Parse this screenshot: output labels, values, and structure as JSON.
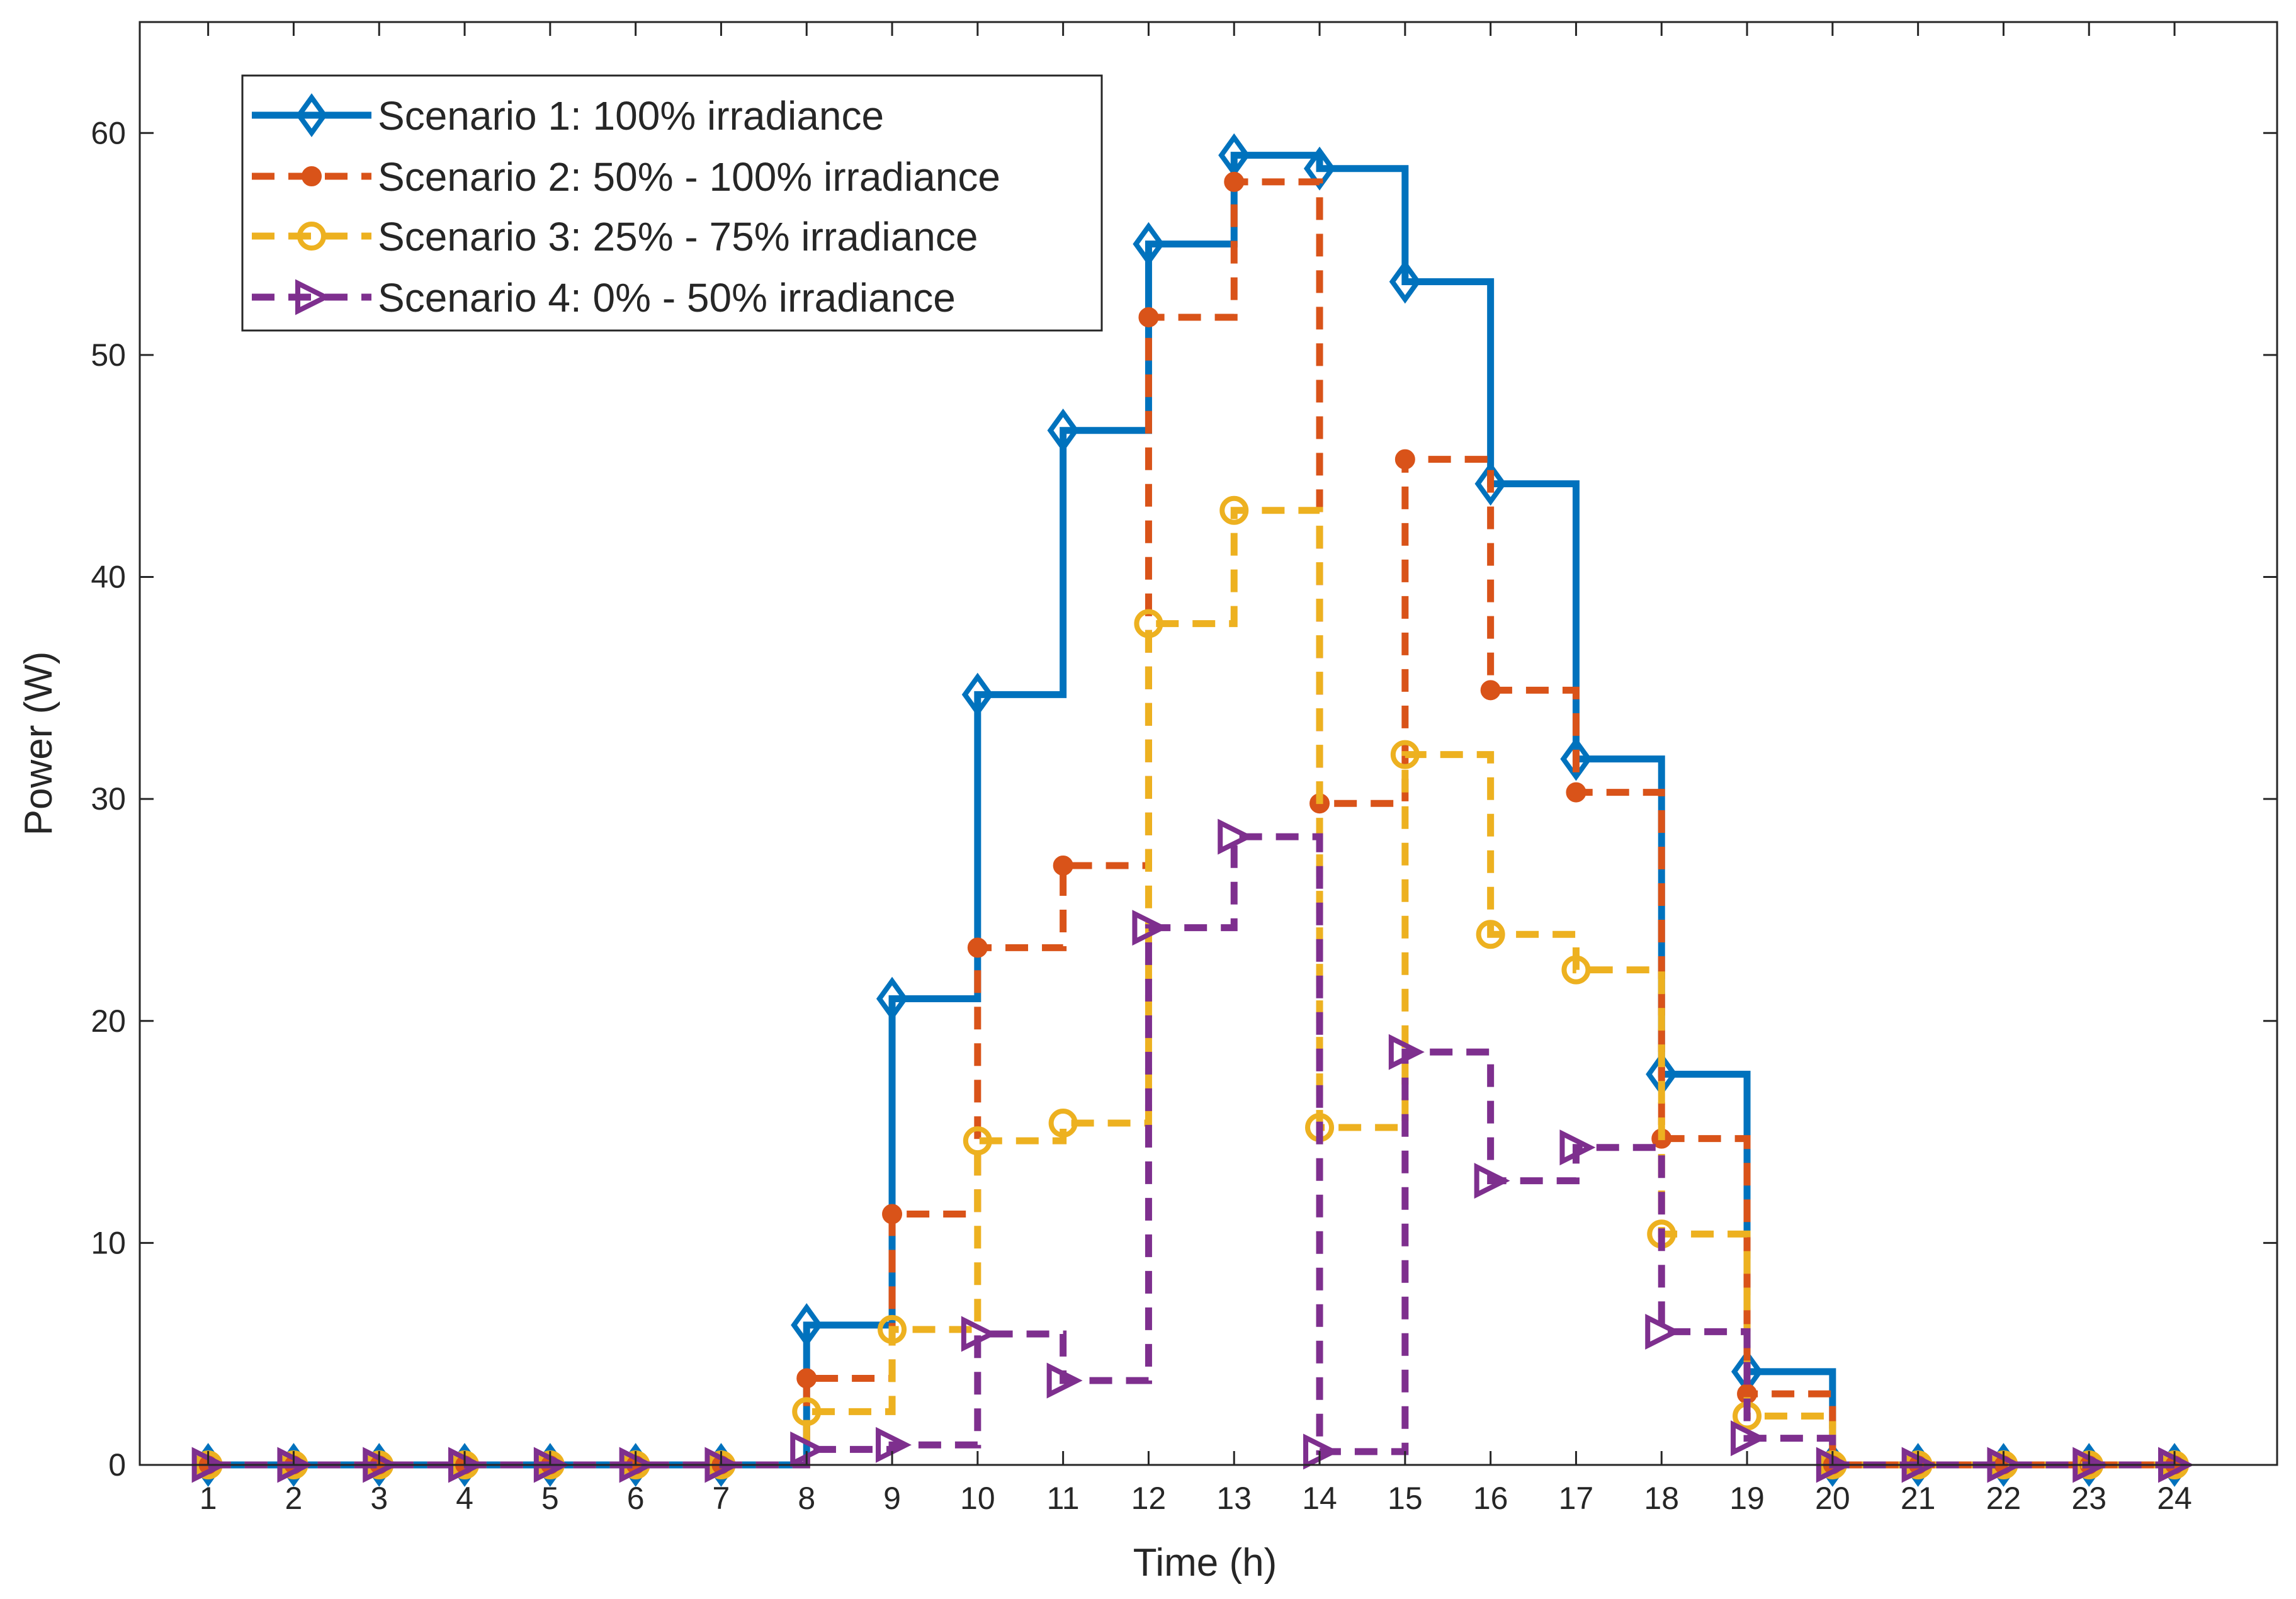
{
  "chart_data": {
    "type": "line",
    "style": "stairs",
    "title": "",
    "xlabel": "Time (h)",
    "ylabel": "Power (W)",
    "xlim": [
      0.2,
      25.2
    ],
    "ylim": [
      0,
      65
    ],
    "xticks": [
      1,
      2,
      3,
      4,
      5,
      6,
      7,
      8,
      9,
      10,
      11,
      12,
      13,
      14,
      15,
      16,
      17,
      18,
      19,
      20,
      21,
      22,
      23,
      24
    ],
    "yticks": [
      0,
      10,
      20,
      30,
      40,
      50,
      60
    ],
    "grid": false,
    "legend_position": "top-left",
    "x": [
      1,
      2,
      3,
      4,
      5,
      6,
      7,
      8,
      9,
      10,
      11,
      12,
      13,
      14,
      15,
      16,
      17,
      18,
      19,
      20,
      21,
      22,
      23,
      24
    ],
    "series": [
      {
        "name": "Scenario 1: 100% irradiance",
        "color": "#0072BD",
        "line_style": "solid",
        "marker": "diamond",
        "values": [
          0,
          0,
          0,
          0,
          0,
          0,
          0,
          6.3,
          21.0,
          34.7,
          46.6,
          55.0,
          59.0,
          58.4,
          53.3,
          44.2,
          31.8,
          17.6,
          4.2,
          0,
          0,
          0,
          0,
          0
        ]
      },
      {
        "name": "Scenario 2: 50% - 100% irradiance",
        "color": "#D95319",
        "line_style": "dashed",
        "marker": "filled-circle",
        "values": [
          0,
          0,
          0,
          0,
          0,
          0,
          0,
          3.9,
          11.3,
          23.3,
          27.0,
          51.7,
          57.8,
          29.8,
          45.3,
          34.9,
          30.3,
          14.7,
          3.2,
          0,
          0,
          0,
          0,
          0
        ]
      },
      {
        "name": "Scenario 3: 25% - 75% irradiance",
        "color": "#EDB120",
        "line_style": "dashed",
        "marker": "open-circle",
        "values": [
          0,
          0,
          0,
          0,
          0,
          0,
          0,
          2.4,
          6.1,
          14.6,
          15.4,
          37.9,
          43.0,
          15.2,
          32.0,
          23.9,
          22.3,
          10.4,
          2.2,
          0,
          0,
          0,
          0,
          0
        ]
      },
      {
        "name": "Scenario 4: 0% - 50% irradiance",
        "color": "#7E2F8E",
        "line_style": "dashed",
        "marker": "triangle-right",
        "values": [
          0,
          0,
          0,
          0,
          0,
          0,
          0,
          0.7,
          0.9,
          5.9,
          3.8,
          24.2,
          28.3,
          0.6,
          18.6,
          12.8,
          14.3,
          6.0,
          1.2,
          0,
          0,
          0,
          0,
          0
        ]
      }
    ]
  }
}
